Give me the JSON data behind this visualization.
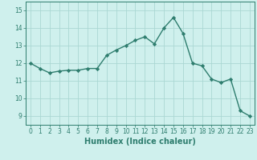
{
  "x": [
    0,
    1,
    2,
    3,
    4,
    5,
    6,
    7,
    8,
    9,
    10,
    11,
    12,
    13,
    14,
    15,
    16,
    17,
    18,
    19,
    20,
    21,
    22,
    23
  ],
  "y": [
    12.0,
    11.7,
    11.45,
    11.55,
    11.6,
    11.6,
    11.7,
    11.7,
    12.45,
    12.75,
    13.0,
    13.3,
    13.5,
    13.1,
    14.0,
    14.6,
    13.7,
    12.0,
    11.85,
    11.1,
    10.9,
    11.1,
    9.3,
    9.0
  ],
  "line_color": "#2e7d6e",
  "marker": "D",
  "marker_size": 2.2,
  "bg_color": "#cff0ed",
  "grid_color": "#aad8d3",
  "xlabel": "Humidex (Indice chaleur)",
  "xlim": [
    -0.5,
    23.5
  ],
  "ylim": [
    8.5,
    15.5
  ],
  "yticks": [
    9,
    10,
    11,
    12,
    13,
    14,
    15
  ],
  "xticks": [
    0,
    1,
    2,
    3,
    4,
    5,
    6,
    7,
    8,
    9,
    10,
    11,
    12,
    13,
    14,
    15,
    16,
    17,
    18,
    19,
    20,
    21,
    22,
    23
  ],
  "tick_color": "#2e7d6e",
  "label_color": "#2e7d6e",
  "axis_color": "#2e7d6e",
  "xlabel_fontsize": 7,
  "tick_fontsize": 5.5
}
